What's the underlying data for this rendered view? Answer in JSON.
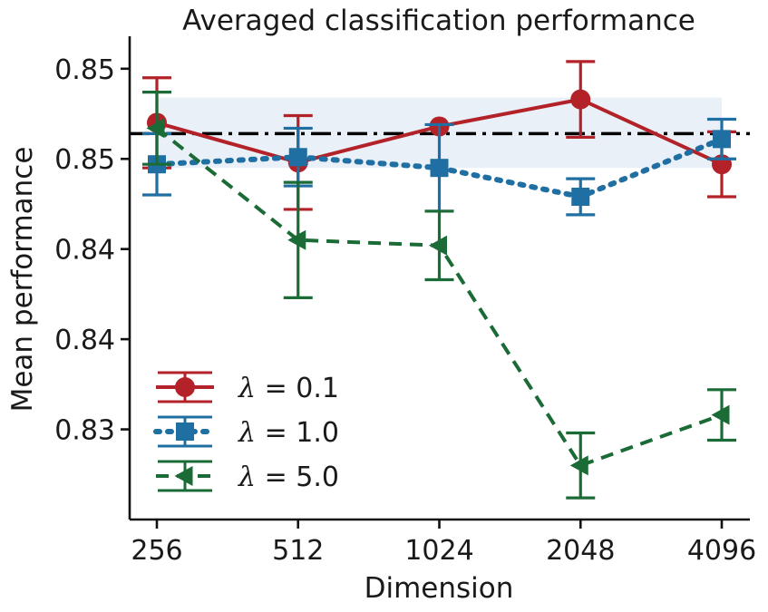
{
  "chart_data": {
    "type": "line",
    "title": "Averaged classification performance",
    "xlabel": "Dimension",
    "ylabel": "Mean performance",
    "categories": [
      "256",
      "512",
      "1024",
      "2048",
      "4096"
    ],
    "yticks": [
      {
        "value": 0.83,
        "label": "0.83"
      },
      {
        "value": 0.835,
        "label": "0.84"
      },
      {
        "value": 0.84,
        "label": "0.84"
      },
      {
        "value": 0.845,
        "label": "0.85"
      },
      {
        "value": 0.85,
        "label": "0.85"
      }
    ],
    "ylim": [
      0.825,
      0.8518
    ],
    "baseline": {
      "value": 0.8464,
      "band": [
        0.8445,
        0.8484
      ],
      "color": "#000000",
      "band_color": "#e9f0f8"
    },
    "series": [
      {
        "name": "λ = 0.1",
        "lambda_symbol": "λ",
        "lambda_value": "= 0.1",
        "color": "#b22228",
        "marker": "circle",
        "dash": "solid",
        "values": [
          0.847,
          0.8448,
          0.8468,
          0.8483,
          0.8447
        ],
        "err": [
          0.0025,
          0.0026,
          0.0,
          0.0021,
          0.0018
        ]
      },
      {
        "name": "λ = 1.0",
        "lambda_symbol": "λ",
        "lambda_value": "= 1.0",
        "color": "#1f6fa3",
        "marker": "square",
        "dash": "dotted",
        "values": [
          0.8447,
          0.8451,
          0.8445,
          0.8429,
          0.8461
        ],
        "err": [
          0.0017,
          0.0016,
          0.0024,
          0.001,
          0.0011
        ]
      },
      {
        "name": "λ = 5.0",
        "lambda_symbol": "λ",
        "lambda_value": "= 5.0",
        "color": "#1a6b35",
        "marker": "triangle-left",
        "dash": "dashed",
        "values": [
          0.8467,
          0.8405,
          0.8402,
          0.828,
          0.8308
        ],
        "err": [
          0.002,
          0.0032,
          0.0019,
          0.0018,
          0.0014
        ]
      }
    ],
    "legend_position": "lower-left",
    "grid": false
  }
}
